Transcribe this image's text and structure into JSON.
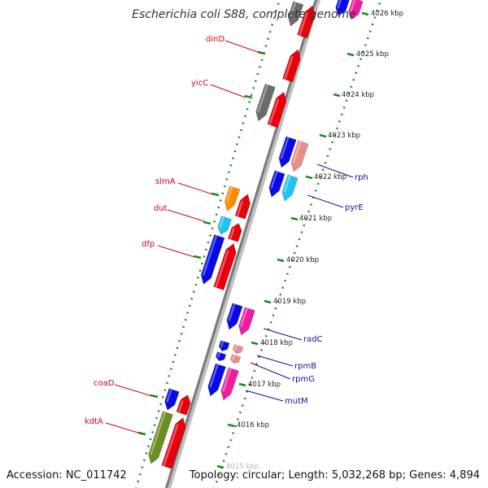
{
  "title": "Escherichia coli S88, complete genome",
  "footer": {
    "accession": "Accession: NC_011742",
    "summary": "Topology: circular; Length: 5,032,268 bp; Genes: 4,894"
  },
  "colors": {
    "red": "#e8000c",
    "dark_red": "#b30000",
    "gray": "#6b6b6b",
    "blue": "#0a0ae6",
    "cyan": "#22c4ee",
    "orange": "#ff8c00",
    "pink": "#ea8c8c",
    "magenta": "#ea1fa0",
    "olive": "#6b8e23",
    "label_red": "#d0001e",
    "label_blue": "#10109a",
    "dot_green": "#1a8a1a"
  },
  "kbp_ticks": [
    "4026 kbp",
    "4025 kbp",
    "4024 kbp",
    "4023 kbp",
    "4022 kbp",
    "4021 kbp",
    "4020 kbp",
    "4019 kbp",
    "4018 kbp",
    "4017 kbp",
    "4016 kbp",
    "4015 kbp"
  ],
  "gene_labels": {
    "left": [
      "dinD",
      "yicC",
      "slmA",
      "dut",
      "dfp",
      "coaD",
      "kdtA"
    ],
    "right": [
      "rph",
      "pyrE",
      "radC",
      "rpmB",
      "rpmG",
      "mutM"
    ]
  }
}
